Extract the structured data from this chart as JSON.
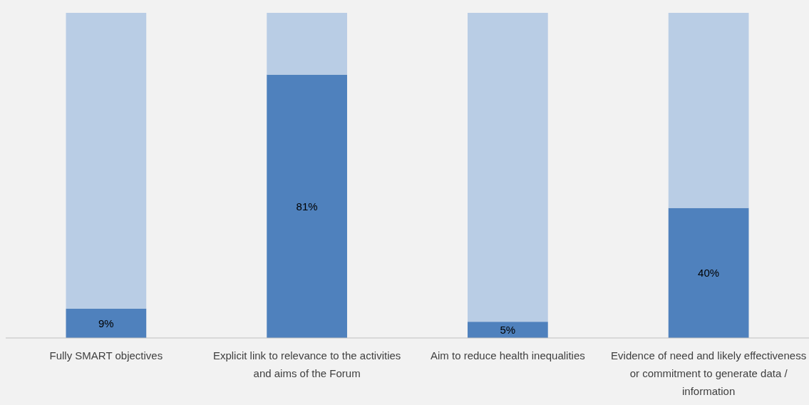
{
  "chart_data": {
    "type": "bar",
    "stacked": true,
    "categories": [
      "Fully SMART objectives",
      "Explicit link to relevance to the activities and aims of the Forum",
      "Aim to reduce health inequalities",
      "Evidence of need and likely effectiveness or commitment to generate data / information"
    ],
    "ylim": [
      0,
      100
    ],
    "tick_labels": "x",
    "series": [
      {
        "color": "#4f81bd",
        "values": [
          9,
          81,
          5,
          40
        ],
        "value_labels": [
          "9%",
          "81%",
          "5%",
          "40%"
        ]
      },
      {
        "color": "#b9cde5",
        "values": [
          91,
          19,
          95,
          60
        ]
      }
    ]
  }
}
